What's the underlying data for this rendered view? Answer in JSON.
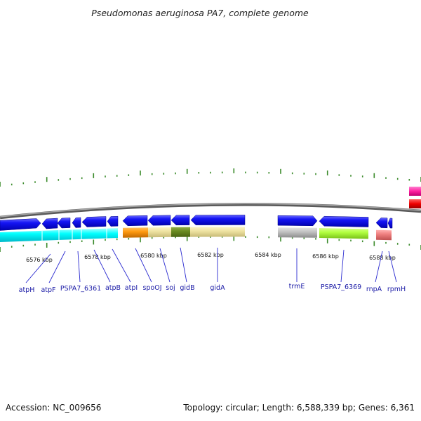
{
  "title": "Pseudomonas aeruginosa PA7, complete genome",
  "accession": "Accession: NC_009656",
  "summary": "Topology: circular; Length: 6,588,339 bp; Genes: 6,361",
  "colors": {
    "background": "#ffffff",
    "backbone": "#808080",
    "ticks": "#3a8a2a",
    "gene_forward": "#0000ee",
    "cyan_track": "#00ffff",
    "label_text": "#1a1aa6",
    "leader_line": "#2a2ad0"
  },
  "scale_labels": [
    "6576 kbp",
    "6578 kbp",
    "6580 kbp",
    "6582 kbp",
    "6584 kbp",
    "6586 kbp",
    "6588 kbp"
  ],
  "genes": [
    {
      "label": "atpH"
    },
    {
      "label": "atpF"
    },
    {
      "label": "PSPA7_6361"
    },
    {
      "label": "atpB"
    },
    {
      "label": "atpI"
    },
    {
      "label": "spoOJ"
    },
    {
      "label": "soj"
    },
    {
      "label": "gidB"
    },
    {
      "label": "gidA"
    },
    {
      "label": "trmE"
    },
    {
      "label": "PSPA7_6369"
    },
    {
      "label": "rnpA"
    },
    {
      "label": "rpmH"
    }
  ]
}
